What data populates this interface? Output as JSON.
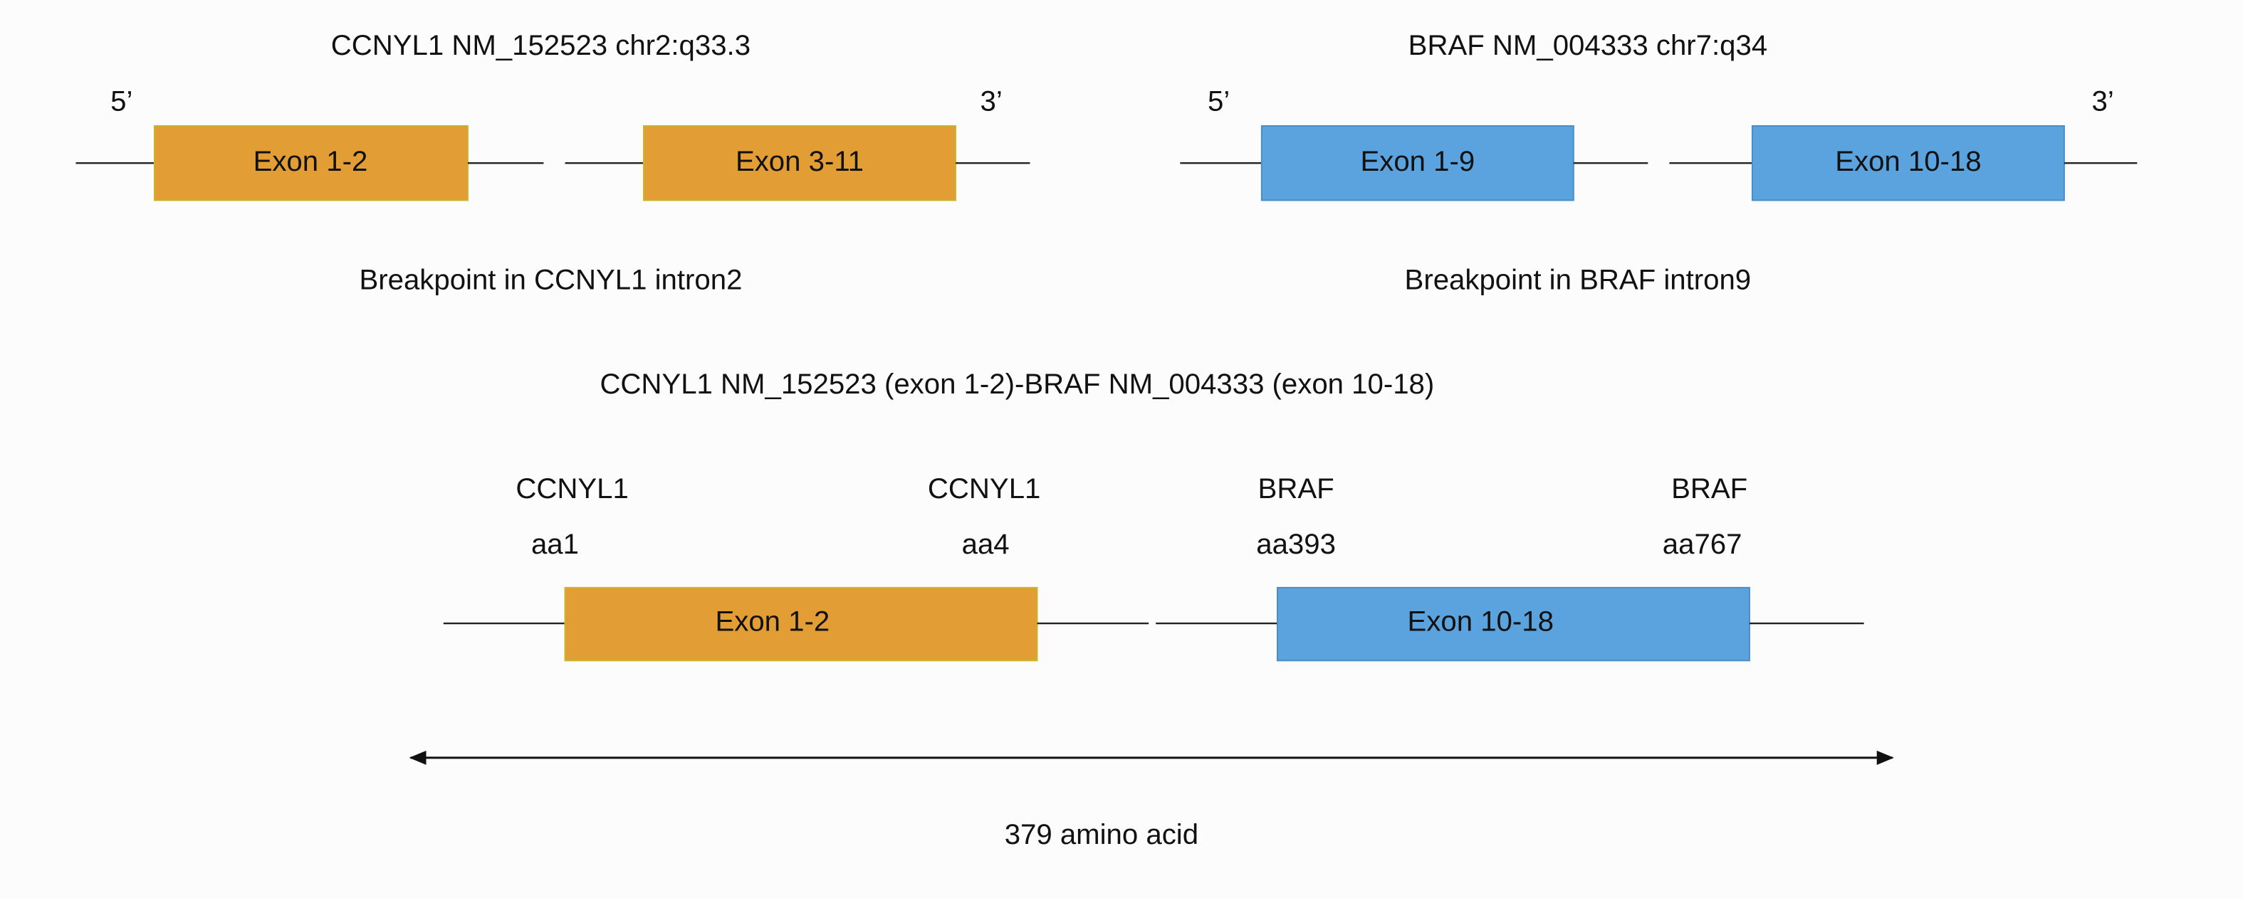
{
  "genes": [
    {
      "title": "CCNYL1 NM_152523 chr2:q33.3",
      "five_prime": "5’",
      "three_prime": "3’",
      "exons": [
        "Exon 1-2",
        "Exon 3-11"
      ],
      "breakpoint": "Breakpoint in CCNYL1 intron2"
    },
    {
      "title": "BRAF NM_004333 chr7:q34",
      "five_prime": "5’",
      "three_prime": "3’",
      "exons": [
        "Exon 1-9",
        "Exon 10-18"
      ],
      "breakpoint": "Breakpoint in BRAF intron9"
    }
  ],
  "fusion": {
    "title": "CCNYL1 NM_152523 (exon 1-2)-BRAF NM_004333 (exon 10-18)",
    "markers": [
      {
        "gene": "CCNYL1",
        "position": "aa1"
      },
      {
        "gene": "CCNYL1",
        "position": "aa4"
      },
      {
        "gene": "BRAF",
        "position": "aa393"
      },
      {
        "gene": "BRAF",
        "position": "aa767"
      }
    ],
    "exons": [
      "Exon 1-2",
      "Exon 10-18"
    ],
    "length": "379 amino acid"
  }
}
